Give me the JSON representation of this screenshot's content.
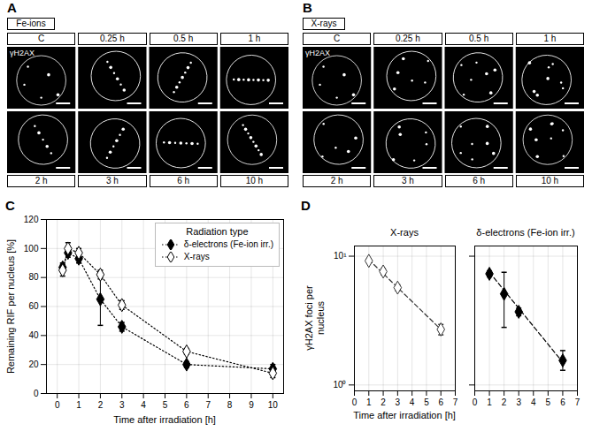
{
  "image_panels": [
    {
      "letter": "A",
      "title": "Fe-ions",
      "stain_label": "γH2AX",
      "labels_above": [
        "C",
        "0.25 h",
        "0.5 h",
        "1 h"
      ],
      "labels_below": [
        "2 h",
        "3 h",
        "6 h",
        "10 h"
      ]
    },
    {
      "letter": "B",
      "title": "X-rays",
      "stain_label": "γH2AX",
      "labels_above": [
        "C",
        "0.25 h",
        "0.5 h",
        "1 h"
      ],
      "labels_below": [
        "2 h",
        "3 h",
        "6 h",
        "10 h"
      ]
    }
  ],
  "chart_data": [
    {
      "letter": "C",
      "type": "line",
      "xlabel": "Time after irradiation [h]",
      "ylabel": "Remaining RIF per nucleus [%]",
      "xlim": [
        -0.5,
        10.5
      ],
      "xticks": [
        0,
        1,
        2,
        3,
        4,
        5,
        6,
        7,
        8,
        9,
        10
      ],
      "ylim": [
        0,
        120
      ],
      "yticks": [
        0,
        20,
        40,
        60,
        80,
        100,
        120
      ],
      "grid": true,
      "legend": "upper right",
      "legend_title": "Radiation type",
      "line_style": "dotted",
      "x": [
        0.25,
        0.5,
        1,
        2,
        3,
        6,
        10
      ],
      "series": [
        {
          "name": "δ-electrons (Fe-ion irr.)",
          "color": "#000000",
          "marker": "diamond",
          "values": [
            87,
            97,
            93,
            65,
            46,
            20,
            17
          ],
          "errors": [
            3,
            3,
            3,
            18,
            3,
            2,
            3
          ]
        },
        {
          "name": "X-rays",
          "color": "#000000",
          "marker": "open-diamond",
          "values": [
            85,
            100,
            97,
            82,
            61,
            29,
            14
          ],
          "errors": [
            4,
            4,
            3,
            3,
            3,
            2,
            3
          ]
        }
      ]
    },
    {
      "letter": "D",
      "type": "scatter",
      "title": "X-rays",
      "xlabel": "Time after irradiation [h]",
      "ylabel": "γH2AX foci per nucleus",
      "log": "y",
      "grid": true,
      "xlim": [
        0,
        7
      ],
      "xticks": [
        0,
        1,
        2,
        3,
        4,
        5,
        6,
        7
      ],
      "ylim": [
        0.9,
        12
      ],
      "yticks": [
        {
          "value": 1,
          "label": "10⁰"
        },
        {
          "value": 10,
          "label": "10¹"
        }
      ],
      "x": [
        1,
        2,
        3,
        6
      ],
      "series": [
        {
          "color": "#333333",
          "marker": "open-diamond",
          "line_style": "dashed",
          "values": [
            9.2,
            7.6,
            5.7,
            2.7
          ],
          "error_low": [
            8.9,
            7.2,
            5.4,
            2.45
          ],
          "error_high": [
            9.5,
            8.0,
            6.0,
            2.95
          ],
          "fit_x": [
            1,
            6
          ],
          "fit_values": [
            9.4,
            2.7
          ]
        }
      ]
    },
    {
      "type": "scatter",
      "title": "δ-electrons (Fe-ion irr.)",
      "log": "y",
      "grid": true,
      "tick_labels": "x",
      "xlim": [
        0,
        7
      ],
      "xticks": [
        0,
        1,
        2,
        3,
        4,
        5,
        6,
        7
      ],
      "ylim": [
        0.9,
        12
      ],
      "yticks": [
        {
          "value": 1,
          "label": "10⁰"
        },
        {
          "value": 10,
          "label": "10¹"
        }
      ],
      "x": [
        1,
        2,
        3,
        6
      ],
      "series": [
        {
          "color": "#000000",
          "marker": "diamond",
          "line_style": "dashed",
          "values": [
            7.3,
            5.1,
            3.7,
            1.55
          ],
          "error_low": [
            6.9,
            2.8,
            3.45,
            1.3
          ],
          "error_high": [
            7.7,
            7.5,
            3.95,
            1.85
          ],
          "fit_x": [
            1,
            6
          ],
          "fit_values": [
            7.5,
            1.5
          ]
        }
      ]
    }
  ]
}
